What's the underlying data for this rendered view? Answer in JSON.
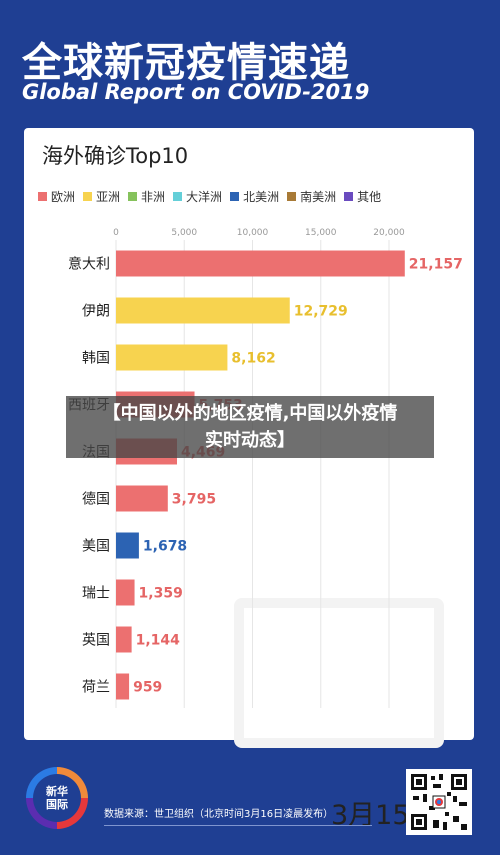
{
  "header": {
    "title_cn": "全球新冠疫情速递",
    "title_en": "Global Report on COVID-2019"
  },
  "card": {
    "title": "海外确诊Top10",
    "date": "3月15日"
  },
  "legend": [
    {
      "label": "欧洲",
      "color": "#ec7070"
    },
    {
      "label": "亚洲",
      "color": "#f7d34f"
    },
    {
      "label": "非洲",
      "color": "#86c25c"
    },
    {
      "label": "大洋洲",
      "color": "#64cfd8"
    },
    {
      "label": "北美洲",
      "color": "#2c63b3"
    },
    {
      "label": "南美洲",
      "color": "#a87a36"
    },
    {
      "label": "其他",
      "color": "#6a4bbf"
    }
  ],
  "overlay": {
    "line1": "【中国以外的地区疫情,中国以外疫情",
    "line2": "实时动态】"
  },
  "footer": {
    "logo_text_1": "新华",
    "logo_text_2": "国际",
    "source": "数据来源：世卫组织（北京时间3月16日凌晨发布）"
  },
  "chart_data": {
    "type": "bar",
    "orientation": "horizontal",
    "title": "海外确诊Top10",
    "xlim": [
      0,
      20000
    ],
    "x_ticks": [
      "0",
      "5,000",
      "10,000",
      "15,000",
      "20,000"
    ],
    "x_tick_values": [
      0,
      5000,
      10000,
      15000,
      20000
    ],
    "categories": [
      "意大利",
      "伊朗",
      "韩国",
      "西班牙",
      "法国",
      "德国",
      "美国",
      "瑞士",
      "英国",
      "荷兰"
    ],
    "category_labels": [
      "意大利",
      "伊朗",
      "韩国",
      "西班牙",
      "法国",
      "德国",
      "美国",
      "瑞士",
      "英国",
      "荷兰"
    ],
    "values": [
      21157,
      12729,
      8162,
      5753,
      4469,
      3795,
      1678,
      1359,
      1144,
      959
    ],
    "value_labels": [
      "21,157",
      "12,729",
      "8,162",
      "5,753",
      "4,469",
      "3,795",
      "1,678",
      "1,359",
      "1,144",
      "959"
    ],
    "colors": [
      "#ec7070",
      "#f7d34f",
      "#f7d34f",
      "#ec7070",
      "#ec7070",
      "#ec7070",
      "#2c63b3",
      "#ec7070",
      "#ec7070",
      "#ec7070"
    ],
    "label_colors": [
      "#e56565",
      "#e8bf2e",
      "#e8bf2e",
      "#e56565",
      "#e56565",
      "#e56565",
      "#2c63b3",
      "#e56565",
      "#e56565",
      "#e56565"
    ]
  }
}
